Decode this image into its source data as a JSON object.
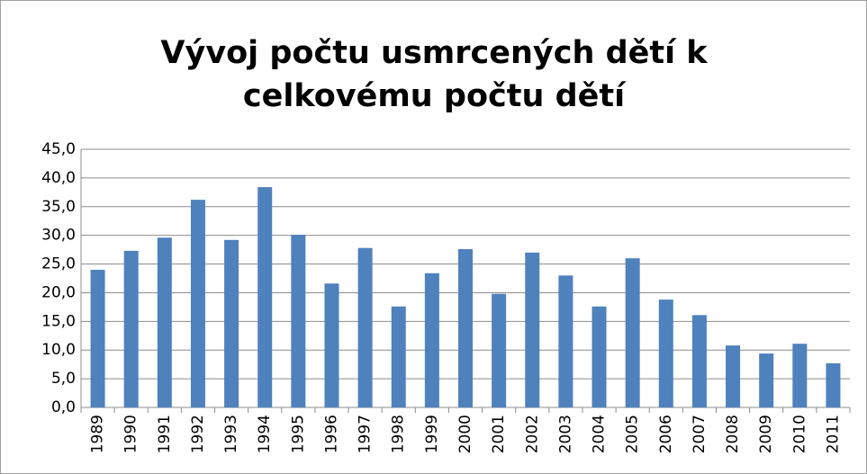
{
  "chart_data": {
    "type": "bar",
    "title": [
      "Vývoj počtu usmrcených dětí k",
      "celkovému počtu dětí"
    ],
    "categories": [
      "1989",
      "1990",
      "1991",
      "1992",
      "1993",
      "1994",
      "1995",
      "1996",
      "1997",
      "1998",
      "1999",
      "2000",
      "2001",
      "2002",
      "2003",
      "2004",
      "2005",
      "2006",
      "2007",
      "2008",
      "2009",
      "2010",
      "2011"
    ],
    "values": [
      24.0,
      27.3,
      29.6,
      36.2,
      29.2,
      38.4,
      30.1,
      21.6,
      27.8,
      17.6,
      23.4,
      27.6,
      19.8,
      27.0,
      23.0,
      17.6,
      26.0,
      18.8,
      16.1,
      10.8,
      9.4,
      11.1,
      7.7
    ],
    "color": "#4f81bd",
    "ylim": [
      0,
      45
    ],
    "yticks": [
      {
        "value": 0,
        "label": "0,0"
      },
      {
        "value": 5,
        "label": "5,0"
      },
      {
        "value": 10,
        "label": "10,0"
      },
      {
        "value": 15,
        "label": "15,0"
      },
      {
        "value": 20,
        "label": "20,0"
      },
      {
        "value": 25,
        "label": "25,0"
      },
      {
        "value": 30,
        "label": "30,0"
      },
      {
        "value": 35,
        "label": "35,0"
      },
      {
        "value": 40,
        "label": "40,0"
      },
      {
        "value": 45,
        "label": "45,0"
      }
    ],
    "grid": true
  }
}
